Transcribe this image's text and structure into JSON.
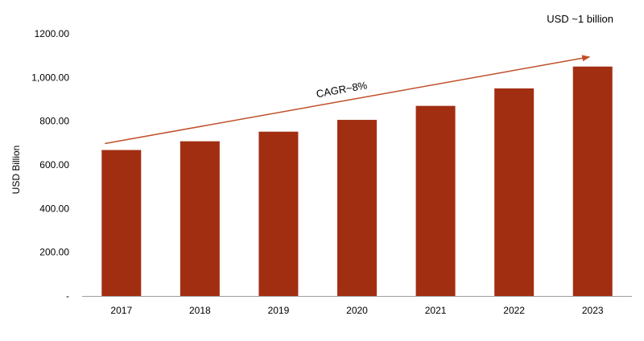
{
  "chart_data": {
    "type": "bar",
    "categories": [
      "2017",
      "2018",
      "2019",
      "2020",
      "2021",
      "2022",
      "2023"
    ],
    "values": [
      668,
      708,
      752,
      806,
      870,
      950,
      1050
    ],
    "ylabel": "USD Billion",
    "ylim": [
      0,
      1200
    ],
    "yticks": [
      0,
      200,
      400,
      600,
      800,
      1000,
      1200
    ],
    "ytick_labels": [
      "-",
      "200.00",
      "400.00",
      "600.00",
      "800.00",
      "1,000.00",
      "1200.00"
    ],
    "grid": false,
    "legend": "none",
    "annotations": {
      "trend_label": "CAGR~8%",
      "corner_label": "USD ~1 billion"
    },
    "colors": {
      "bar": "#A22E12",
      "trend_arrow": "#C0502A",
      "axis": "#9E9E9E"
    }
  }
}
